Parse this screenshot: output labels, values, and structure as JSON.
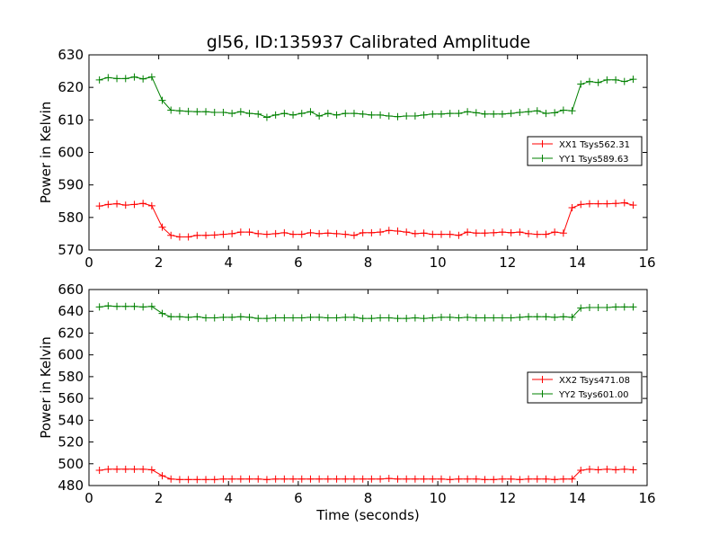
{
  "title": "gl56, ID:135937 Calibrated Amplitude",
  "chart_data": [
    {
      "type": "line",
      "xlabel": "",
      "ylabel": "Power in Kelvin",
      "xlim": [
        0,
        16
      ],
      "ylim": [
        570,
        630
      ],
      "xticks": [
        "0",
        "2",
        "4",
        "6",
        "8",
        "10",
        "12",
        "14",
        "16"
      ],
      "yticks": [
        "570",
        "580",
        "590",
        "600",
        "610",
        "620",
        "630"
      ],
      "legend_position": "center-right",
      "x": [
        0.3,
        0.55,
        0.8,
        1.05,
        1.3,
        1.55,
        1.8,
        2.1,
        2.35,
        2.6,
        2.85,
        3.1,
        3.35,
        3.6,
        3.85,
        4.1,
        4.35,
        4.6,
        4.85,
        5.1,
        5.35,
        5.6,
        5.85,
        6.1,
        6.35,
        6.6,
        6.85,
        7.1,
        7.35,
        7.6,
        7.85,
        8.1,
        8.35,
        8.6,
        8.85,
        9.1,
        9.35,
        9.6,
        9.85,
        10.1,
        10.35,
        10.6,
        10.85,
        11.1,
        11.35,
        11.6,
        11.85,
        12.1,
        12.35,
        12.6,
        12.85,
        13.1,
        13.35,
        13.6,
        13.85,
        14.1,
        14.35,
        14.6,
        14.85,
        15.1,
        15.35,
        15.6
      ],
      "series": [
        {
          "name": "XX1 Tsys562.31",
          "color": "#ff0000",
          "values": [
            583.5,
            584.0,
            584.2,
            583.8,
            584.0,
            584.3,
            583.6,
            577.0,
            574.5,
            574.0,
            574.0,
            574.5,
            574.5,
            574.6,
            574.8,
            575.0,
            575.5,
            575.5,
            575.0,
            574.8,
            575.0,
            575.3,
            574.8,
            574.8,
            575.3,
            575.0,
            575.2,
            575.0,
            574.8,
            574.5,
            575.3,
            575.3,
            575.5,
            576.0,
            575.8,
            575.5,
            575.0,
            575.2,
            574.8,
            574.8,
            574.8,
            574.5,
            575.5,
            575.2,
            575.2,
            575.3,
            575.5,
            575.3,
            575.5,
            575.0,
            574.8,
            574.8,
            575.5,
            575.2,
            583.0,
            584.0,
            584.2,
            584.2,
            584.2,
            584.3,
            584.5,
            583.8
          ]
        },
        {
          "name": "YY1 Tsys589.63",
          "color": "#008000",
          "values": [
            622.3,
            623.0,
            622.7,
            622.7,
            623.2,
            622.6,
            623.2,
            616.0,
            613.0,
            612.8,
            612.6,
            612.5,
            612.5,
            612.3,
            612.3,
            612.0,
            612.5,
            612.0,
            611.8,
            610.8,
            611.5,
            612.0,
            611.5,
            612.0,
            612.5,
            611.2,
            612.0,
            611.5,
            612.0,
            612.0,
            611.8,
            611.5,
            611.5,
            611.2,
            611.0,
            611.2,
            611.2,
            611.5,
            611.8,
            611.8,
            612.0,
            612.0,
            612.5,
            612.2,
            611.8,
            611.8,
            611.8,
            612.0,
            612.3,
            612.5,
            612.8,
            612.0,
            612.2,
            613.0,
            612.8,
            621.0,
            621.8,
            621.5,
            622.3,
            622.3,
            621.8,
            622.5
          ]
        }
      ]
    },
    {
      "type": "line",
      "xlabel": "Time (seconds)",
      "ylabel": "Power in Kelvin",
      "xlim": [
        0,
        16
      ],
      "ylim": [
        480,
        660
      ],
      "xticks": [
        "0",
        "2",
        "4",
        "6",
        "8",
        "10",
        "12",
        "14",
        "16"
      ],
      "yticks": [
        "480",
        "500",
        "520",
        "540",
        "560",
        "580",
        "600",
        "620",
        "640",
        "660"
      ],
      "legend_position": "center-right",
      "x": [
        0.3,
        0.55,
        0.8,
        1.05,
        1.3,
        1.55,
        1.8,
        2.1,
        2.35,
        2.6,
        2.85,
        3.1,
        3.35,
        3.6,
        3.85,
        4.1,
        4.35,
        4.6,
        4.85,
        5.1,
        5.35,
        5.6,
        5.85,
        6.1,
        6.35,
        6.6,
        6.85,
        7.1,
        7.35,
        7.6,
        7.85,
        8.1,
        8.35,
        8.6,
        8.85,
        9.1,
        9.35,
        9.6,
        9.85,
        10.1,
        10.35,
        10.6,
        10.85,
        11.1,
        11.35,
        11.6,
        11.85,
        12.1,
        12.35,
        12.6,
        12.85,
        13.1,
        13.35,
        13.6,
        13.85,
        14.1,
        14.35,
        14.6,
        14.85,
        15.1,
        15.35,
        15.6
      ],
      "series": [
        {
          "name": "XX2 Tsys471.08",
          "color": "#ff0000",
          "values": [
            494.0,
            495.0,
            495.0,
            495.0,
            495.0,
            495.0,
            494.5,
            489.0,
            486.0,
            485.5,
            485.5,
            485.5,
            485.5,
            485.5,
            486.0,
            486.0,
            486.0,
            486.0,
            486.0,
            485.5,
            486.0,
            486.0,
            486.0,
            486.0,
            486.0,
            486.0,
            486.0,
            486.0,
            486.0,
            486.0,
            486.0,
            486.0,
            486.0,
            486.5,
            486.0,
            486.0,
            486.0,
            486.0,
            486.0,
            486.0,
            485.5,
            486.0,
            486.0,
            486.0,
            485.5,
            485.5,
            486.0,
            486.0,
            485.5,
            486.0,
            486.0,
            486.0,
            485.5,
            486.0,
            486.0,
            494.0,
            495.0,
            494.5,
            495.0,
            494.5,
            495.0,
            494.5
          ]
        },
        {
          "name": "YY2 Tsys601.00",
          "color": "#008000",
          "values": [
            644.0,
            645.0,
            644.5,
            644.5,
            644.5,
            644.0,
            644.5,
            638.0,
            635.0,
            635.0,
            634.5,
            635.0,
            634.0,
            634.0,
            634.5,
            634.5,
            635.0,
            634.5,
            633.5,
            633.5,
            634.0,
            634.0,
            634.0,
            634.0,
            634.5,
            634.5,
            634.0,
            634.0,
            634.5,
            634.5,
            633.5,
            633.5,
            634.0,
            634.0,
            633.5,
            633.5,
            634.0,
            633.5,
            634.0,
            634.5,
            634.5,
            634.0,
            634.5,
            634.0,
            634.0,
            634.0,
            634.0,
            634.0,
            634.5,
            635.0,
            635.0,
            635.0,
            634.5,
            635.0,
            634.5,
            643.0,
            643.5,
            643.5,
            643.5,
            644.0,
            644.0,
            644.0
          ]
        }
      ]
    }
  ]
}
